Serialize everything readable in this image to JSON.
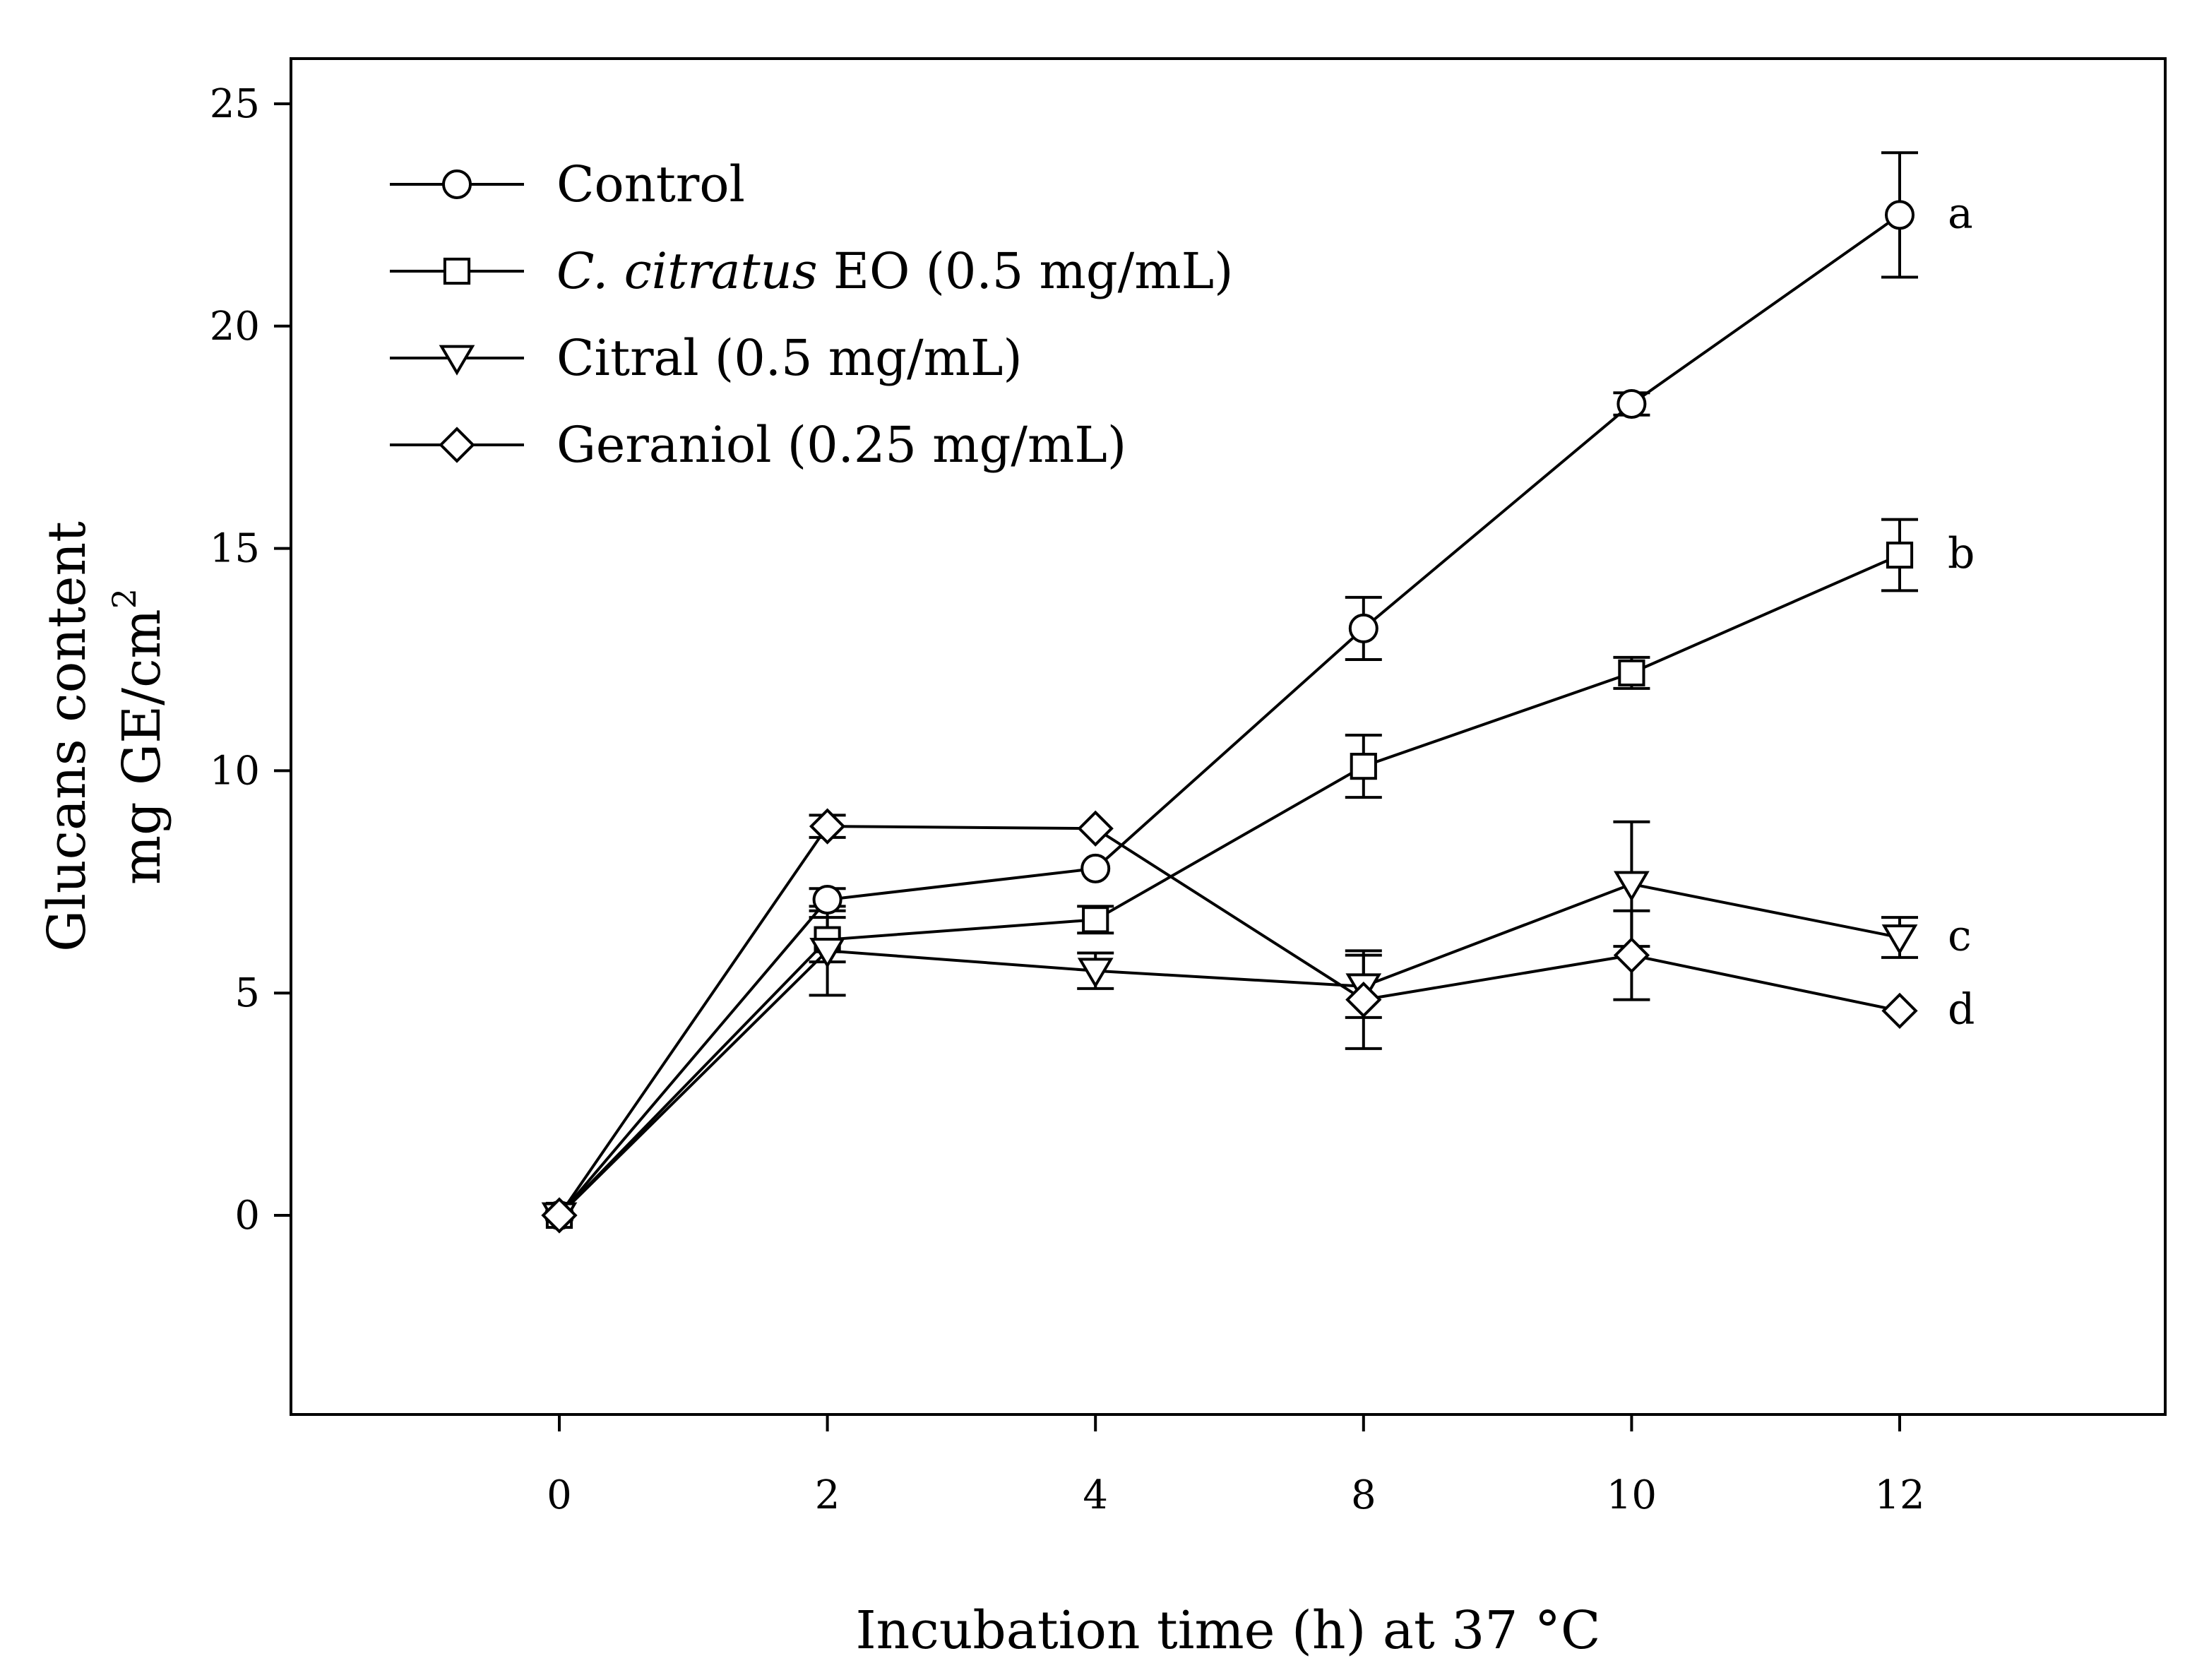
{
  "chart_data": {
    "type": "line",
    "title": "",
    "xlabel": "Incubation time (h) at 37 °C",
    "ylabel_line1": "Glucans content",
    "ylabel_line2_main": "mg GE/cm",
    "ylabel_line2_sup": "2",
    "categories": [
      "0",
      "2",
      "4",
      "8",
      "10",
      "12"
    ],
    "ylim": [
      -4.5,
      26
    ],
    "yticks": [
      0,
      5,
      10,
      15,
      20,
      25
    ],
    "ytick_labels": [
      "0",
      "5",
      "10",
      "15",
      "20",
      "25"
    ],
    "legend_position": "top-left",
    "series": [
      {
        "name": "Control",
        "legend_italic": "",
        "legend_rest": "Control",
        "marker": "circle",
        "values": [
          0,
          7.1,
          7.8,
          13.2,
          18.25,
          22.5
        ],
        "errors": [
          0,
          0.25,
          0,
          0.7,
          0.25,
          1.4
        ],
        "end_letter": "a"
      },
      {
        "name": "C. citratus EO (0.5 mg/mL)",
        "legend_italic": "C. citratus",
        "legend_rest": " EO (0.5 mg/mL)",
        "marker": "square",
        "values": [
          0,
          6.2,
          6.65,
          10.1,
          12.2,
          14.85
        ],
        "errors": [
          0,
          0.5,
          0.3,
          0.7,
          0.35,
          0.8
        ],
        "end_letter": "b"
      },
      {
        "name": "Citral (0.5 mg/mL)",
        "legend_italic": "",
        "legend_rest": "Citral (0.5 mg/mL)",
        "marker": "triangle-down",
        "values": [
          0,
          5.95,
          5.5,
          5.15,
          7.45,
          6.25
        ],
        "errors": [
          0,
          1.0,
          0.4,
          0.7,
          1.4,
          0.45
        ],
        "end_letter": "c"
      },
      {
        "name": "Geraniol (0.25 mg/mL)",
        "legend_italic": "",
        "legend_rest": "Geraniol (0.25 mg/mL)",
        "marker": "diamond",
        "values": [
          0,
          8.75,
          8.7,
          4.85,
          5.85,
          4.6
        ],
        "errors": [
          0,
          0.25,
          0,
          1.1,
          1.0,
          0
        ],
        "end_letter": "d"
      }
    ]
  }
}
